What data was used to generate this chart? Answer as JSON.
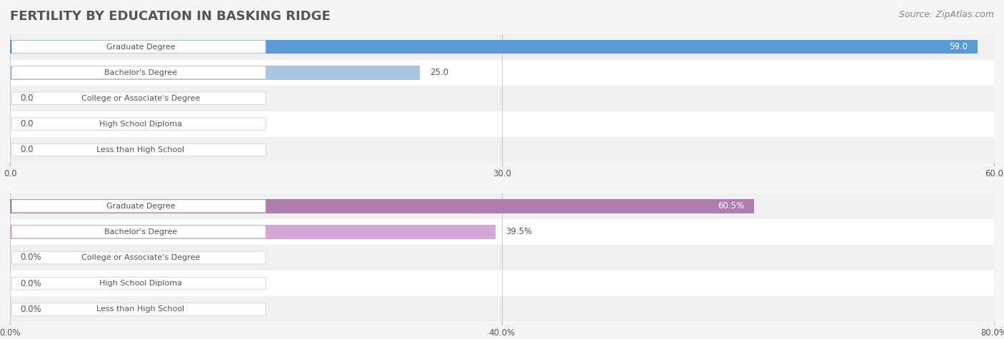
{
  "title": "FERTILITY BY EDUCATION IN BASKING RIDGE",
  "source": "Source: ZipAtlas.com",
  "chart1": {
    "categories": [
      "Less than High School",
      "High School Diploma",
      "College or Associate's Degree",
      "Bachelor's Degree",
      "Graduate Degree"
    ],
    "values": [
      0.0,
      0.0,
      0.0,
      25.0,
      59.0
    ],
    "xlim": [
      0,
      60
    ],
    "xticks": [
      0.0,
      30.0,
      60.0
    ],
    "bar_color_light": "#a8c4e0",
    "bar_color_dark": "#5b9bd5",
    "label_value_color_default": "#555555",
    "label_value_color_inside": "#ffffff"
  },
  "chart2": {
    "categories": [
      "Less than High School",
      "High School Diploma",
      "College or Associate's Degree",
      "Bachelor's Degree",
      "Graduate Degree"
    ],
    "values": [
      0.0,
      0.0,
      0.0,
      39.5,
      60.5
    ],
    "xlim": [
      0,
      80
    ],
    "xticks": [
      0.0,
      40.0,
      80.0
    ],
    "xtick_labels": [
      "0.0%",
      "40.0%",
      "80.0%"
    ],
    "bar_color_light": "#d4a8d4",
    "bar_color_dark": "#b07db0",
    "label_value_color_default": "#555555",
    "label_value_color_inside": "#ffffff"
  },
  "bg_color": "#f5f5f5",
  "row_bg_even": "#ffffff",
  "row_bg_odd": "#f0f0f0",
  "label_box_color": "#ffffff",
  "label_text_color": "#555555",
  "title_color": "#555555",
  "source_color": "#888888",
  "title_fontsize": 13,
  "source_fontsize": 9,
  "bar_label_fontsize": 8.5,
  "category_label_fontsize": 8,
  "tick_fontsize": 8.5
}
